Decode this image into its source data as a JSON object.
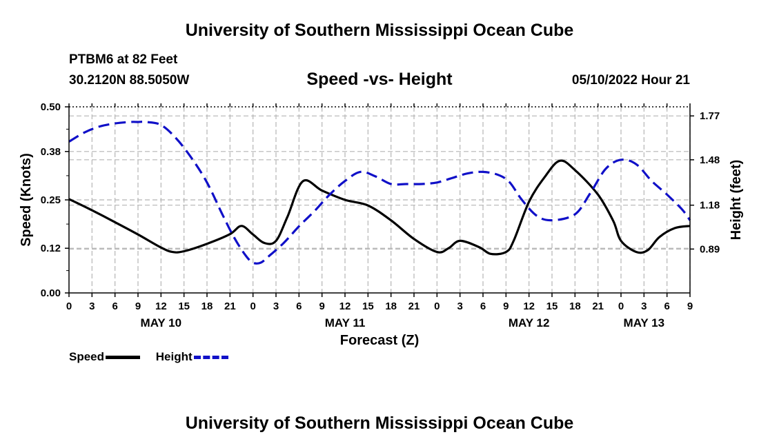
{
  "header": {
    "title": "University of Southern Mississippi Ocean Cube",
    "station": "PTBM6 at 82 Feet",
    "coordinates": "30.2120N  88.5050W",
    "chart_title": "Speed -vs- Height",
    "datetime": "05/10/2022 Hour 21"
  },
  "footer": {
    "title": "University of Southern Mississippi Ocean Cube"
  },
  "legend": {
    "speed_label": "Speed",
    "height_label": "Height"
  },
  "colors": {
    "speed": "#000000",
    "height": "#1010c8",
    "grid": "#b4b4b4"
  },
  "chart_data": {
    "type": "line",
    "title": "Speed -vs- Height",
    "xlabel": "Forecast (Z)",
    "ylabel": "Speed (Knots)",
    "y2label": "Height (feet)",
    "x_range": [
      0,
      81
    ],
    "x_ticks": [
      0,
      3,
      6,
      9,
      12,
      15,
      18,
      21,
      24,
      27,
      30,
      33,
      36,
      39,
      42,
      45,
      48,
      51,
      54,
      57,
      60,
      63,
      66,
      69,
      72,
      75,
      78,
      81
    ],
    "x_tick_labels": [
      "0",
      "3",
      "6",
      "9",
      "12",
      "15",
      "18",
      "21",
      "0",
      "3",
      "6",
      "9",
      "12",
      "15",
      "18",
      "21",
      "0",
      "3",
      "6",
      "9",
      "12",
      "15",
      "18",
      "21",
      "0",
      "3",
      "6",
      "9"
    ],
    "date_labels": [
      {
        "hour": 12,
        "label": "MAY 10"
      },
      {
        "hour": 36,
        "label": "MAY 11"
      },
      {
        "hour": 60,
        "label": "MAY 12"
      },
      {
        "hour": 75,
        "label": "MAY 13"
      }
    ],
    "y_range": [
      0,
      0.5
    ],
    "y_ticks": [
      0.0,
      0.12,
      0.25,
      0.38,
      0.5
    ],
    "y_tick_labels": [
      "0.00",
      "0.12",
      "0.25",
      "0.38",
      "0.50"
    ],
    "y2_range": [
      0.6,
      1.83
    ],
    "y2_ticks": [
      0.89,
      1.18,
      1.48,
      1.77
    ],
    "y2_tick_labels": [
      "0.89",
      "1.18",
      "1.48",
      "1.77"
    ],
    "series": [
      {
        "name": "Speed",
        "axis": "left",
        "style": "solid",
        "x": [
          0,
          3,
          6,
          9,
          12,
          13.5,
          15,
          18,
          21,
          22.5,
          24,
          25.5,
          27,
          28.5,
          30.5,
          33,
          36,
          39,
          42,
          45,
          48,
          49.5,
          51,
          53.5,
          55,
          57,
          58,
          60,
          62,
          64,
          66,
          69,
          71,
          72,
          74,
          75.5,
          77,
          79,
          81
        ],
        "y": [
          0.252,
          0.222,
          0.19,
          0.157,
          0.122,
          0.11,
          0.112,
          0.132,
          0.158,
          0.18,
          0.157,
          0.134,
          0.14,
          0.205,
          0.3,
          0.275,
          0.25,
          0.235,
          0.195,
          0.145,
          0.11,
          0.12,
          0.14,
          0.123,
          0.105,
          0.11,
          0.14,
          0.245,
          0.31,
          0.355,
          0.33,
          0.264,
          0.193,
          0.14,
          0.11,
          0.115,
          0.15,
          0.174,
          0.18
        ]
      },
      {
        "name": "Height",
        "axis": "right",
        "style": "dashed",
        "x": [
          0,
          2,
          4,
          6,
          8,
          9,
          10,
          12,
          14,
          16,
          18,
          20,
          21.5,
          23,
          24,
          25,
          26,
          28,
          30,
          32,
          34,
          36,
          38,
          40,
          42,
          44,
          46,
          48,
          50,
          52,
          54,
          56,
          57.5,
          59,
          61,
          63,
          66,
          68,
          70,
          72,
          74,
          76,
          78,
          80,
          81
        ],
        "y": [
          1.6,
          1.66,
          1.7,
          1.72,
          1.73,
          1.73,
          1.73,
          1.71,
          1.62,
          1.49,
          1.33,
          1.12,
          0.97,
          0.85,
          0.8,
          0.8,
          0.84,
          0.93,
          1.04,
          1.14,
          1.25,
          1.34,
          1.4,
          1.37,
          1.32,
          1.32,
          1.32,
          1.33,
          1.36,
          1.39,
          1.4,
          1.38,
          1.33,
          1.22,
          1.11,
          1.08,
          1.12,
          1.26,
          1.42,
          1.48,
          1.45,
          1.34,
          1.25,
          1.15,
          1.08
        ]
      }
    ]
  }
}
